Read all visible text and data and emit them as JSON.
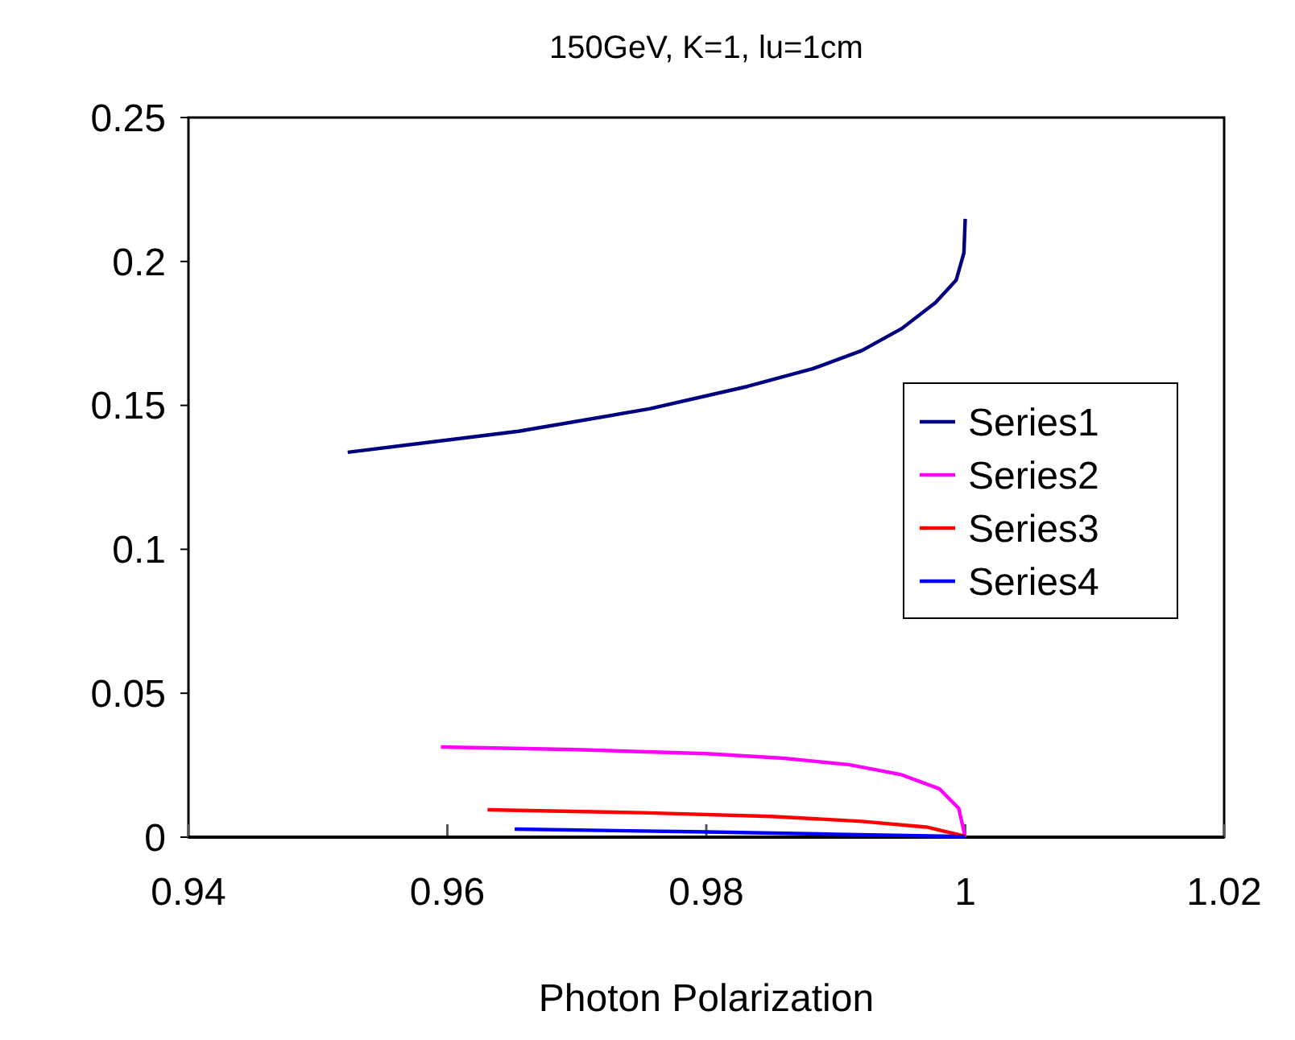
{
  "chart_data": {
    "type": "line",
    "title": "150GeV, K=1, lu=1cm",
    "xlabel": "Photon Polarization",
    "xlim": [
      0.94,
      1.02
    ],
    "xticks": [
      0.94,
      0.96,
      0.98,
      1,
      1.02
    ],
    "ylim": [
      0,
      0.25
    ],
    "yticks": [
      0,
      0.05,
      0.1,
      0.15,
      0.2,
      0.25
    ],
    "grid": false,
    "legend": "right",
    "marker": "none",
    "line_style": "solid",
    "series": [
      {
        "name": "Series1",
        "color": "#000080",
        "x": [
          0.9523,
          0.9655,
          0.9756,
          0.9832,
          0.9882,
          0.992,
          0.9951,
          0.9977,
          0.9993,
          0.9999,
          1.0
        ],
        "values": [
          0.1337,
          0.141,
          0.1488,
          0.1566,
          0.1627,
          0.169,
          0.1767,
          0.1857,
          0.1935,
          0.203,
          0.2148
        ]
      },
      {
        "name": "Series2",
        "color": "#ff00ff",
        "x": [
          0.9595,
          0.97,
          0.98,
          0.986,
          0.991,
          0.995,
          0.998,
          0.9995,
          1.0
        ],
        "values": [
          0.0313,
          0.0304,
          0.029,
          0.0274,
          0.0252,
          0.0218,
          0.0168,
          0.01,
          0.0
        ]
      },
      {
        "name": "Series3",
        "color": "#ff0000",
        "x": [
          0.9631,
          0.975,
          0.985,
          0.992,
          0.997,
          1.0
        ],
        "values": [
          0.0095,
          0.0085,
          0.0072,
          0.0055,
          0.0035,
          0.0003
        ]
      },
      {
        "name": "Series4",
        "color": "#0000ff",
        "x": [
          0.9652,
          0.98,
          0.99,
          1.0
        ],
        "values": [
          0.0028,
          0.0018,
          0.001,
          0.0002
        ]
      }
    ]
  }
}
